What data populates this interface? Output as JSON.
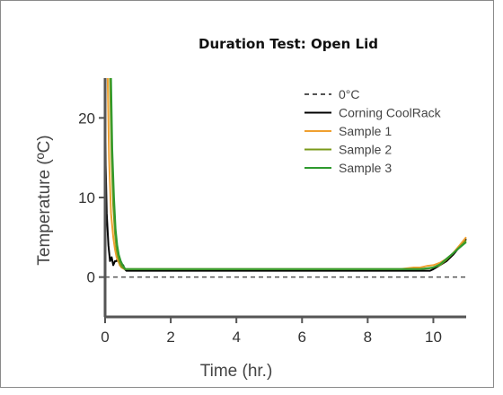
{
  "chart_data": {
    "type": "line",
    "title": "Duration Test: Open Lid",
    "xlabel": "Time (hr.)",
    "ylabel": "Temperature (ºC)",
    "xlim": [
      0,
      11
    ],
    "ylim": [
      -5,
      25
    ],
    "xticks": [
      0,
      2,
      4,
      6,
      8,
      10
    ],
    "yticks": [
      0,
      10,
      20
    ],
    "legend_position": "top-right",
    "reference_line": {
      "name": "0°C",
      "y": 0,
      "style": "dashed",
      "color": "#555555"
    },
    "series": [
      {
        "name": "Corning CoolRack",
        "color": "#000000",
        "x": [
          0.0,
          0.02,
          0.05,
          0.1,
          0.15,
          0.2,
          0.25,
          0.3,
          0.35,
          0.4,
          0.45,
          0.5,
          0.55,
          0.6,
          0.65,
          1.0,
          3.0,
          5.0,
          7.0,
          9.0,
          9.6,
          9.9,
          10.0,
          10.2,
          10.4,
          10.6,
          10.8,
          11.0
        ],
        "y": [
          25,
          14,
          8,
          4,
          2,
          2.5,
          1.5,
          2,
          2,
          2.5,
          1.5,
          1.5,
          1.5,
          1.0,
          0.8,
          0.8,
          0.8,
          0.8,
          0.8,
          0.8,
          0.8,
          0.8,
          1.0,
          1.5,
          2.0,
          2.8,
          3.8,
          4.8
        ]
      },
      {
        "name": "Sample 1",
        "color": "#f0a030",
        "x": [
          0.08,
          0.12,
          0.18,
          0.25,
          0.3,
          0.35,
          0.4,
          0.45,
          0.5,
          0.6,
          0.7,
          1.0,
          3.0,
          5.0,
          7.0,
          9.0,
          9.4,
          9.6,
          9.8,
          10.0,
          10.2,
          10.4,
          10.6,
          10.8,
          11.0
        ],
        "y": [
          25,
          15,
          8,
          5,
          3.5,
          2.5,
          2,
          1.5,
          1.2,
          1.0,
          1.0,
          1.0,
          1.0,
          1.0,
          1.0,
          1.0,
          1.2,
          1.2,
          1.4,
          1.5,
          1.8,
          2.3,
          3.0,
          4.0,
          5.0
        ]
      },
      {
        "name": "Sample 2",
        "color": "#7a9a1a",
        "x": [
          0.15,
          0.2,
          0.25,
          0.3,
          0.35,
          0.4,
          0.45,
          0.5,
          0.6,
          0.7,
          1.0,
          3.0,
          5.0,
          7.0,
          9.0,
          9.6,
          9.9,
          10.2,
          10.4,
          10.6,
          10.8,
          11.0
        ],
        "y": [
          25,
          15,
          9,
          5.5,
          3.5,
          2.5,
          1.8,
          1.3,
          1.0,
          1.0,
          1.0,
          1.0,
          1.0,
          1.0,
          1.0,
          1.0,
          1.1,
          1.5,
          2.2,
          3.0,
          3.8,
          4.6
        ]
      },
      {
        "name": "Sample 3",
        "color": "#2e9a2e",
        "x": [
          0.18,
          0.22,
          0.27,
          0.32,
          0.37,
          0.42,
          0.48,
          0.55,
          0.62,
          0.7,
          1.0,
          3.0,
          5.0,
          7.0,
          9.0,
          9.6,
          10.0,
          10.2,
          10.4,
          10.6,
          10.8,
          11.0
        ],
        "y": [
          25,
          16,
          10,
          6,
          4,
          2.8,
          2.0,
          1.4,
          1.0,
          1.0,
          1.0,
          1.0,
          1.0,
          1.0,
          1.0,
          1.0,
          1.2,
          1.6,
          2.3,
          3.0,
          3.7,
          4.4
        ]
      }
    ]
  }
}
